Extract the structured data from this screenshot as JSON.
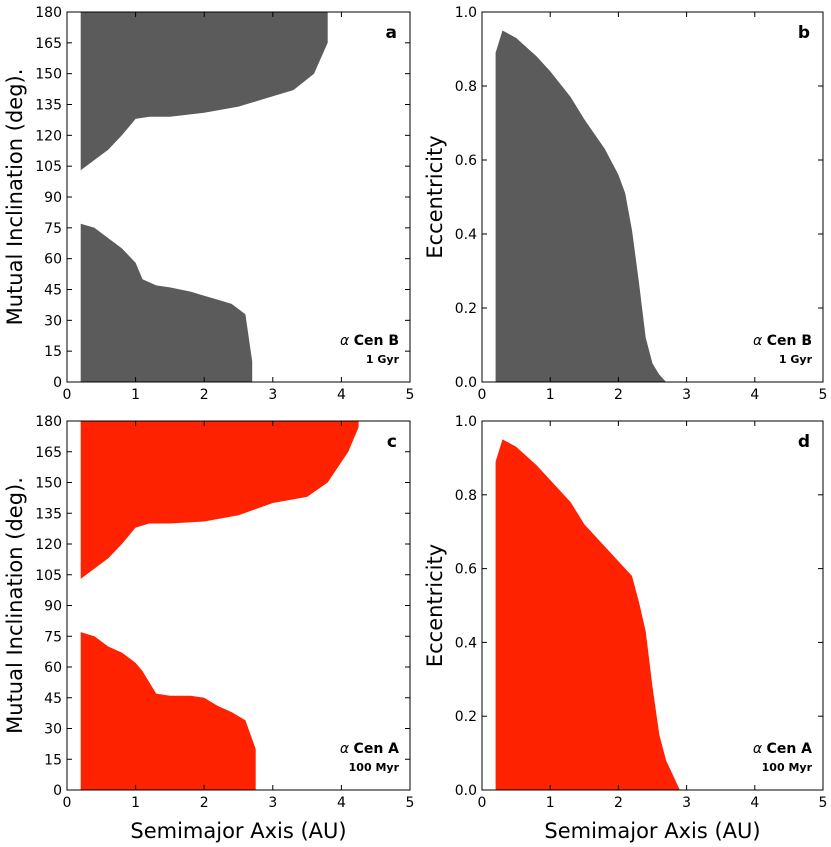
{
  "colors": {
    "grey": "#5b5b5b",
    "red": "#ff2200"
  },
  "chart_data": [
    {
      "panel": "a",
      "type": "area",
      "fill_color": "#5b5b5b",
      "xlim": [
        0,
        5
      ],
      "ylim": [
        0,
        180
      ],
      "xticks": [
        "0",
        "1",
        "2",
        "3",
        "4",
        "5"
      ],
      "yticks": [
        "0",
        "15",
        "30",
        "45",
        "60",
        "75",
        "90",
        "105",
        "120",
        "135",
        "150",
        "165",
        "180"
      ],
      "ylabel": "Mutual Inclination (deg).",
      "xlabel": "",
      "star": "Cen B",
      "age": "1 Gyr",
      "regions": [
        {
          "name": "upper",
          "x": [
            0.2,
            0.4,
            0.6,
            0.8,
            1.0,
            1.2,
            1.5,
            2.0,
            2.5,
            3.0,
            3.3,
            3.6,
            3.8
          ],
          "lower": [
            103,
            108,
            113,
            120,
            128,
            129,
            129,
            131,
            134,
            139,
            142,
            150,
            165
          ],
          "upper": [
            180,
            180,
            180,
            180,
            180,
            180,
            180,
            180,
            180,
            180,
            180,
            180,
            180
          ]
        },
        {
          "name": "lower",
          "x": [
            0.2,
            0.4,
            0.6,
            0.8,
            1.0,
            1.1,
            1.3,
            1.5,
            1.8,
            2.0,
            2.2,
            2.4,
            2.6,
            2.7
          ],
          "lower": [
            0,
            0,
            0,
            0,
            0,
            0,
            0,
            0,
            0,
            0,
            0,
            0,
            0,
            0
          ],
          "upper": [
            77,
            75,
            70,
            65,
            58,
            50,
            47,
            46,
            44,
            42,
            40,
            38,
            33,
            10
          ]
        }
      ]
    },
    {
      "panel": "b",
      "type": "area",
      "fill_color": "#5b5b5b",
      "xlim": [
        0,
        5
      ],
      "ylim": [
        0,
        1
      ],
      "xticks": [
        "0",
        "1",
        "2",
        "3",
        "4",
        "5"
      ],
      "yticks": [
        "0.0",
        "0.2",
        "0.4",
        "0.6",
        "0.8",
        "1.0"
      ],
      "ylabel": "Eccentricity",
      "xlabel": "",
      "star": "Cen B",
      "age": "1 Gyr",
      "regions": [
        {
          "name": "stable",
          "x": [
            0.2,
            0.3,
            0.5,
            0.8,
            1.0,
            1.3,
            1.5,
            1.8,
            2.0,
            2.1,
            2.2,
            2.3,
            2.4,
            2.5,
            2.6,
            2.7
          ],
          "lower": [
            0,
            0,
            0,
            0,
            0,
            0,
            0,
            0,
            0,
            0,
            0,
            0,
            0,
            0,
            0,
            0
          ],
          "upper": [
            0.89,
            0.95,
            0.93,
            0.88,
            0.84,
            0.77,
            0.71,
            0.63,
            0.56,
            0.51,
            0.41,
            0.27,
            0.12,
            0.05,
            0.02,
            0.0
          ]
        }
      ]
    },
    {
      "panel": "c",
      "type": "area",
      "fill_color": "#ff2200",
      "xlim": [
        0,
        5
      ],
      "ylim": [
        0,
        180
      ],
      "xticks": [
        "0",
        "1",
        "2",
        "3",
        "4",
        "5"
      ],
      "yticks": [
        "0",
        "15",
        "30",
        "45",
        "60",
        "75",
        "90",
        "105",
        "120",
        "135",
        "150",
        "165",
        "180"
      ],
      "ylabel": "Mutual Inclination (deg).",
      "xlabel": "Semimajor Axis (AU)",
      "star": "Cen A",
      "age": "100 Myr",
      "regions": [
        {
          "name": "upper",
          "x": [
            0.2,
            0.4,
            0.6,
            0.8,
            1.0,
            1.2,
            1.5,
            2.0,
            2.5,
            3.0,
            3.5,
            3.8,
            4.1,
            4.25
          ],
          "lower": [
            103,
            108,
            113,
            120,
            128,
            130,
            130,
            131,
            134,
            140,
            143,
            150,
            165,
            177
          ],
          "upper": [
            180,
            180,
            180,
            180,
            180,
            180,
            180,
            180,
            180,
            180,
            180,
            180,
            180,
            180
          ]
        },
        {
          "name": "lower",
          "x": [
            0.2,
            0.4,
            0.6,
            0.8,
            1.0,
            1.1,
            1.3,
            1.5,
            1.8,
            2.0,
            2.2,
            2.4,
            2.6,
            2.75
          ],
          "lower": [
            0,
            0,
            0,
            0,
            0,
            0,
            0,
            0,
            0,
            0,
            0,
            0,
            0,
            0
          ],
          "upper": [
            77,
            75,
            70,
            67,
            62,
            58,
            47,
            46,
            46,
            45,
            41,
            38,
            34,
            20
          ]
        }
      ]
    },
    {
      "panel": "d",
      "type": "area",
      "fill_color": "#ff2200",
      "xlim": [
        0,
        5
      ],
      "ylim": [
        0,
        1
      ],
      "xticks": [
        "0",
        "1",
        "2",
        "3",
        "4",
        "5"
      ],
      "yticks": [
        "0.0",
        "0.2",
        "0.4",
        "0.6",
        "0.8",
        "1.0"
      ],
      "ylabel": "Eccentricity",
      "xlabel": "Semimajor Axis (AU)",
      "star": "Cen A",
      "age": "100 Myr",
      "regions": [
        {
          "name": "stable",
          "x": [
            0.2,
            0.3,
            0.5,
            0.8,
            1.0,
            1.3,
            1.5,
            1.8,
            2.0,
            2.2,
            2.3,
            2.4,
            2.5,
            2.6,
            2.7,
            2.8,
            2.9
          ],
          "lower": [
            0,
            0,
            0,
            0,
            0,
            0,
            0,
            0,
            0,
            0,
            0,
            0,
            0,
            0,
            0,
            0,
            0
          ],
          "upper": [
            0.89,
            0.95,
            0.93,
            0.88,
            0.84,
            0.78,
            0.72,
            0.66,
            0.62,
            0.58,
            0.51,
            0.43,
            0.28,
            0.15,
            0.08,
            0.04,
            0.0
          ]
        }
      ]
    }
  ]
}
